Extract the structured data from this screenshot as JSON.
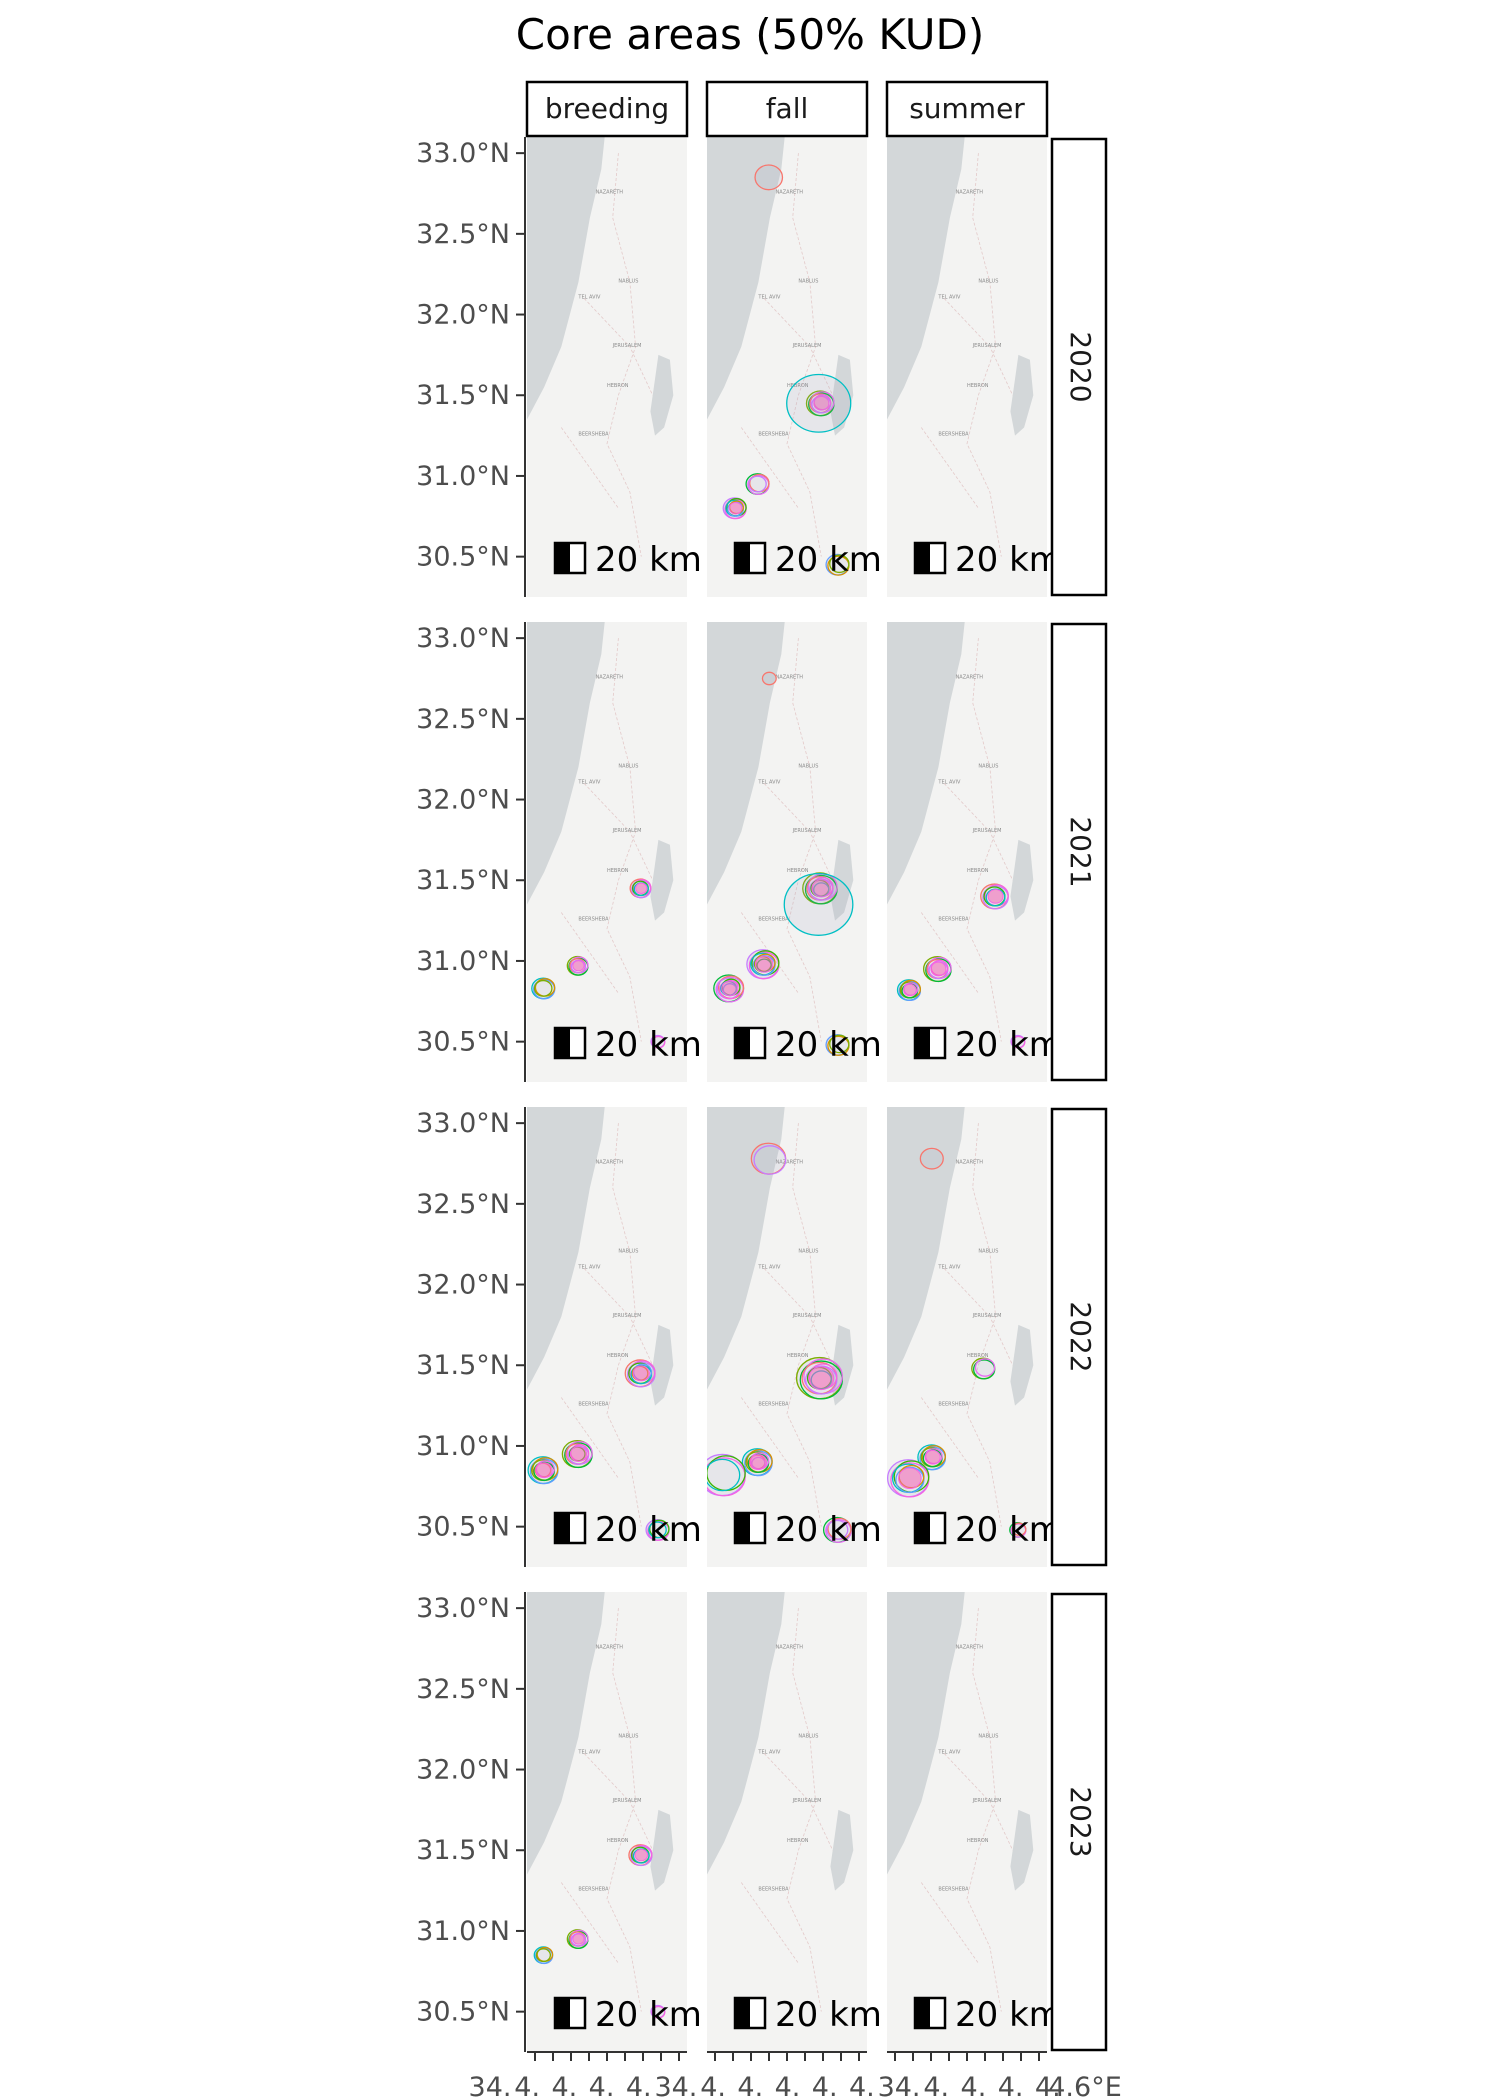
{
  "chart_data": {
    "type": "map-facet",
    "title": "Core areas (50% KUD)",
    "columns": [
      "breeding",
      "fall",
      "summer"
    ],
    "rows": [
      "2020",
      "2021",
      "2022",
      "2023"
    ],
    "y_ticks": [
      "33.0°N",
      "32.5°N",
      "32.0°N",
      "31.5°N",
      "31.0°N",
      "30.5°N"
    ],
    "y_values": [
      33.0,
      32.5,
      32.0,
      31.5,
      31.0,
      30.5
    ],
    "ylim": [
      30.25,
      33.1
    ],
    "xlim": [
      34.3,
      35.7
    ],
    "x_ticks_text": [
      "34.",
      "4.",
      "4.",
      "4.",
      "4.",
      "34.",
      "4.",
      "4.",
      "4.",
      "4.",
      "4.",
      "34.",
      "4.",
      "4.",
      "4.",
      "4.",
      "4.6°E"
    ],
    "scale_bar_label": "20 km",
    "map_labels": [
      "NAZARETH",
      "TEL AVIV",
      "NABLUS",
      "JERUSALEM",
      "BEERSHEBA",
      "HEBRON"
    ],
    "clusters_description_colors": [
      "#f8766d",
      "#7cae00",
      "#00bfc4",
      "#c77cff",
      "#00ba38",
      "#619cff",
      "#f564e3",
      "#e76bf3",
      "#d89000",
      "#39b600"
    ],
    "panels": [
      {
        "row": "2020",
        "col": "breeding",
        "clusters": []
      },
      {
        "row": "2020",
        "col": "fall",
        "clusters": [
          {
            "lon": 34.85,
            "lat": 32.85,
            "r": 0.12,
            "n": 1
          },
          {
            "lon": 35.3,
            "lat": 31.45,
            "r": 0.12,
            "n": 6
          },
          {
            "lon": 35.3,
            "lat": 31.45,
            "r": 0.28,
            "n": 1
          },
          {
            "lon": 34.55,
            "lat": 30.8,
            "r": 0.1,
            "n": 6
          },
          {
            "lon": 34.75,
            "lat": 30.95,
            "r": 0.1,
            "n": 4
          },
          {
            "lon": 35.45,
            "lat": 30.45,
            "r": 0.1,
            "n": 3
          }
        ]
      },
      {
        "row": "2020",
        "col": "summer",
        "clusters": []
      },
      {
        "row": "2021",
        "col": "breeding",
        "clusters": [
          {
            "lon": 35.3,
            "lat": 31.45,
            "r": 0.09,
            "n": 5
          },
          {
            "lon": 34.75,
            "lat": 30.97,
            "r": 0.09,
            "n": 5
          },
          {
            "lon": 34.45,
            "lat": 30.83,
            "r": 0.1,
            "n": 4
          },
          {
            "lon": 35.45,
            "lat": 30.5,
            "r": 0.06,
            "n": 2
          }
        ]
      },
      {
        "row": "2021",
        "col": "fall",
        "clusters": [
          {
            "lon": 34.85,
            "lat": 32.75,
            "r": 0.06,
            "n": 1
          },
          {
            "lon": 35.3,
            "lat": 31.45,
            "r": 0.15,
            "n": 8
          },
          {
            "lon": 35.3,
            "lat": 31.35,
            "r": 0.3,
            "n": 1
          },
          {
            "lon": 34.8,
            "lat": 30.98,
            "r": 0.14,
            "n": 8
          },
          {
            "lon": 34.5,
            "lat": 30.83,
            "r": 0.13,
            "n": 8
          },
          {
            "lon": 35.45,
            "lat": 30.48,
            "r": 0.1,
            "n": 3
          }
        ]
      },
      {
        "row": "2021",
        "col": "summer",
        "clusters": [
          {
            "lon": 35.25,
            "lat": 31.4,
            "r": 0.12,
            "n": 5
          },
          {
            "lon": 34.75,
            "lat": 30.95,
            "r": 0.12,
            "n": 6
          },
          {
            "lon": 34.5,
            "lat": 30.82,
            "r": 0.1,
            "n": 6
          },
          {
            "lon": 35.45,
            "lat": 30.5,
            "r": 0.06,
            "n": 2
          }
        ]
      },
      {
        "row": "2022",
        "col": "breeding",
        "clusters": [
          {
            "lon": 35.3,
            "lat": 31.45,
            "r": 0.13,
            "n": 7
          },
          {
            "lon": 34.75,
            "lat": 30.95,
            "r": 0.13,
            "n": 7
          },
          {
            "lon": 34.45,
            "lat": 30.85,
            "r": 0.13,
            "n": 7
          },
          {
            "lon": 35.45,
            "lat": 30.48,
            "r": 0.1,
            "n": 4
          }
        ]
      },
      {
        "row": "2022",
        "col": "fall",
        "clusters": [
          {
            "lon": 34.85,
            "lat": 32.78,
            "r": 0.15,
            "n": 2
          },
          {
            "lon": 35.3,
            "lat": 31.42,
            "r": 0.2,
            "n": 8
          },
          {
            "lon": 34.75,
            "lat": 30.9,
            "r": 0.13,
            "n": 8
          },
          {
            "lon": 34.45,
            "lat": 30.82,
            "r": 0.2,
            "n": 4
          },
          {
            "lon": 35.45,
            "lat": 30.48,
            "r": 0.12,
            "n": 4
          }
        ]
      },
      {
        "row": "2022",
        "col": "summer",
        "clusters": [
          {
            "lon": 34.7,
            "lat": 32.78,
            "r": 0.1,
            "n": 1
          },
          {
            "lon": 35.15,
            "lat": 31.48,
            "r": 0.1,
            "n": 3
          },
          {
            "lon": 34.7,
            "lat": 30.93,
            "r": 0.12,
            "n": 6
          },
          {
            "lon": 34.5,
            "lat": 30.8,
            "r": 0.18,
            "n": 6
          },
          {
            "lon": 35.45,
            "lat": 30.48,
            "r": 0.07,
            "n": 3
          }
        ]
      },
      {
        "row": "2023",
        "col": "breeding",
        "clusters": [
          {
            "lon": 35.3,
            "lat": 31.47,
            "r": 0.1,
            "n": 5
          },
          {
            "lon": 34.75,
            "lat": 30.95,
            "r": 0.09,
            "n": 5
          },
          {
            "lon": 34.45,
            "lat": 30.85,
            "r": 0.08,
            "n": 4
          },
          {
            "lon": 35.45,
            "lat": 30.5,
            "r": 0.06,
            "n": 2
          }
        ]
      },
      {
        "row": "2023",
        "col": "fall",
        "clusters": []
      },
      {
        "row": "2023",
        "col": "summer",
        "clusters": []
      }
    ]
  }
}
